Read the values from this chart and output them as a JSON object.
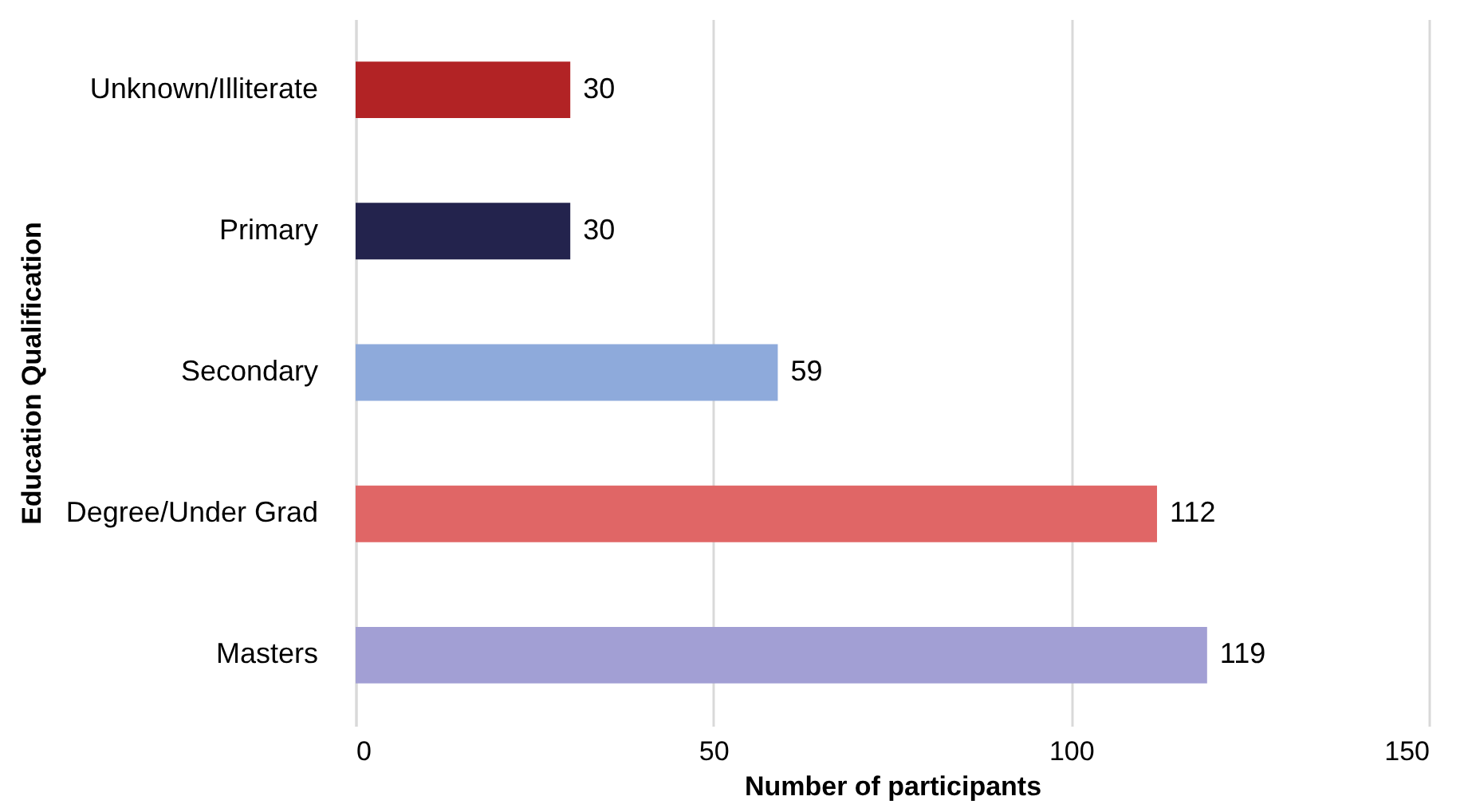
{
  "chart_data": {
    "type": "bar",
    "orientation": "horizontal",
    "xlabel": "Number of participants",
    "ylabel": "Education Qualification",
    "categories": [
      "Unknown/Illiterate",
      "Primary",
      "Secondary",
      "Degree/Under Grad",
      "Masters"
    ],
    "values": [
      30,
      30,
      59,
      112,
      119
    ],
    "colors": [
      "#b22325",
      "#23234d",
      "#8eaadb",
      "#e06666",
      "#a29fd4"
    ],
    "xlim": [
      0,
      150
    ],
    "xticks": [
      0,
      50,
      100,
      150
    ],
    "grid": "x",
    "data_labels": true
  }
}
